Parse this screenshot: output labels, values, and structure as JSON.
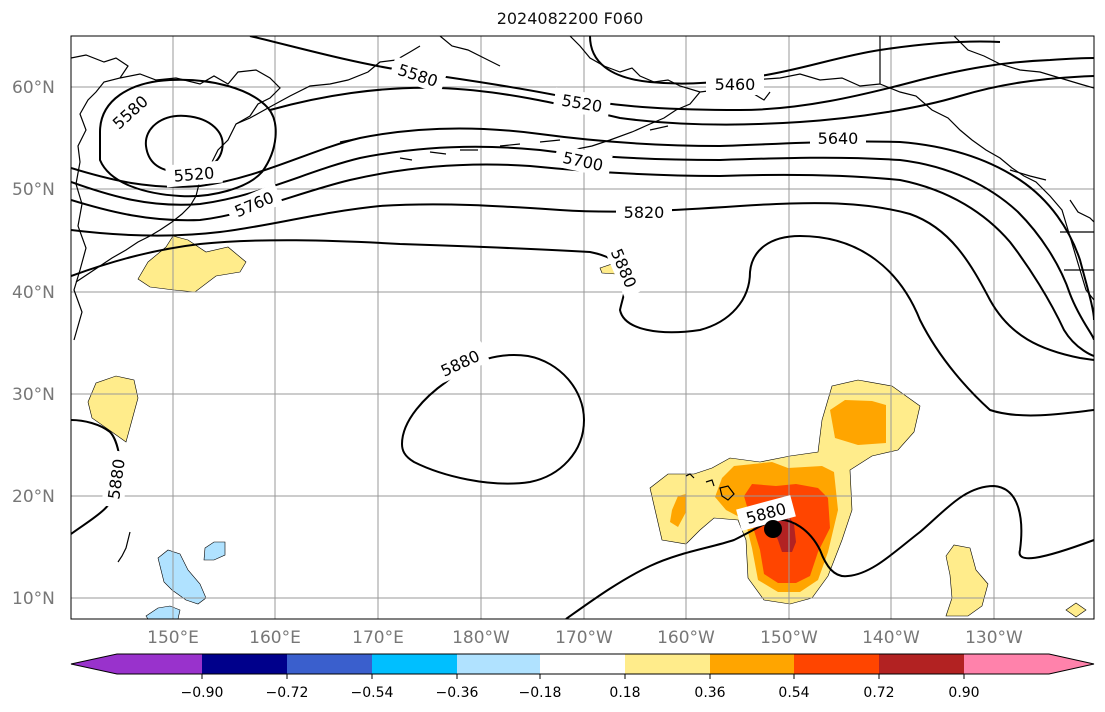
{
  "title": "2024082200 F060",
  "lat_ticks": [
    "60°N",
    "50°N",
    "40°N",
    "30°N",
    "20°N",
    "10°N"
  ],
  "lon_ticks": [
    "150°E",
    "160°E",
    "170°E",
    "180°W",
    "170°W",
    "160°W",
    "150°W",
    "140°W",
    "130°W"
  ],
  "contour_labels": [
    "5580",
    "5460",
    "5520",
    "5580",
    "5520",
    "5700",
    "5640",
    "5760",
    "5820",
    "5880",
    "5880",
    "5880",
    "5880"
  ],
  "colorbar": {
    "ticks": [
      "−0.90",
      "−0.72",
      "−0.54",
      "−0.36",
      "−0.18",
      "0.18",
      "0.36",
      "0.54",
      "0.72",
      "0.90"
    ],
    "colors": [
      "#9932CC",
      "#00008B",
      "#3A5FCD",
      "#00BFFF",
      "#B0E2FF",
      "#FFFFFF",
      "#FFEC8B",
      "#FFA500",
      "#FF4500",
      "#B22222",
      "#FF82AB"
    ]
  },
  "map": {
    "lat_range": [
      8,
      65
    ],
    "lon_range_east": [
      140,
      240
    ],
    "grid": true,
    "marker": {
      "lon": "151.5°W",
      "lat": "16.7°N"
    }
  }
}
